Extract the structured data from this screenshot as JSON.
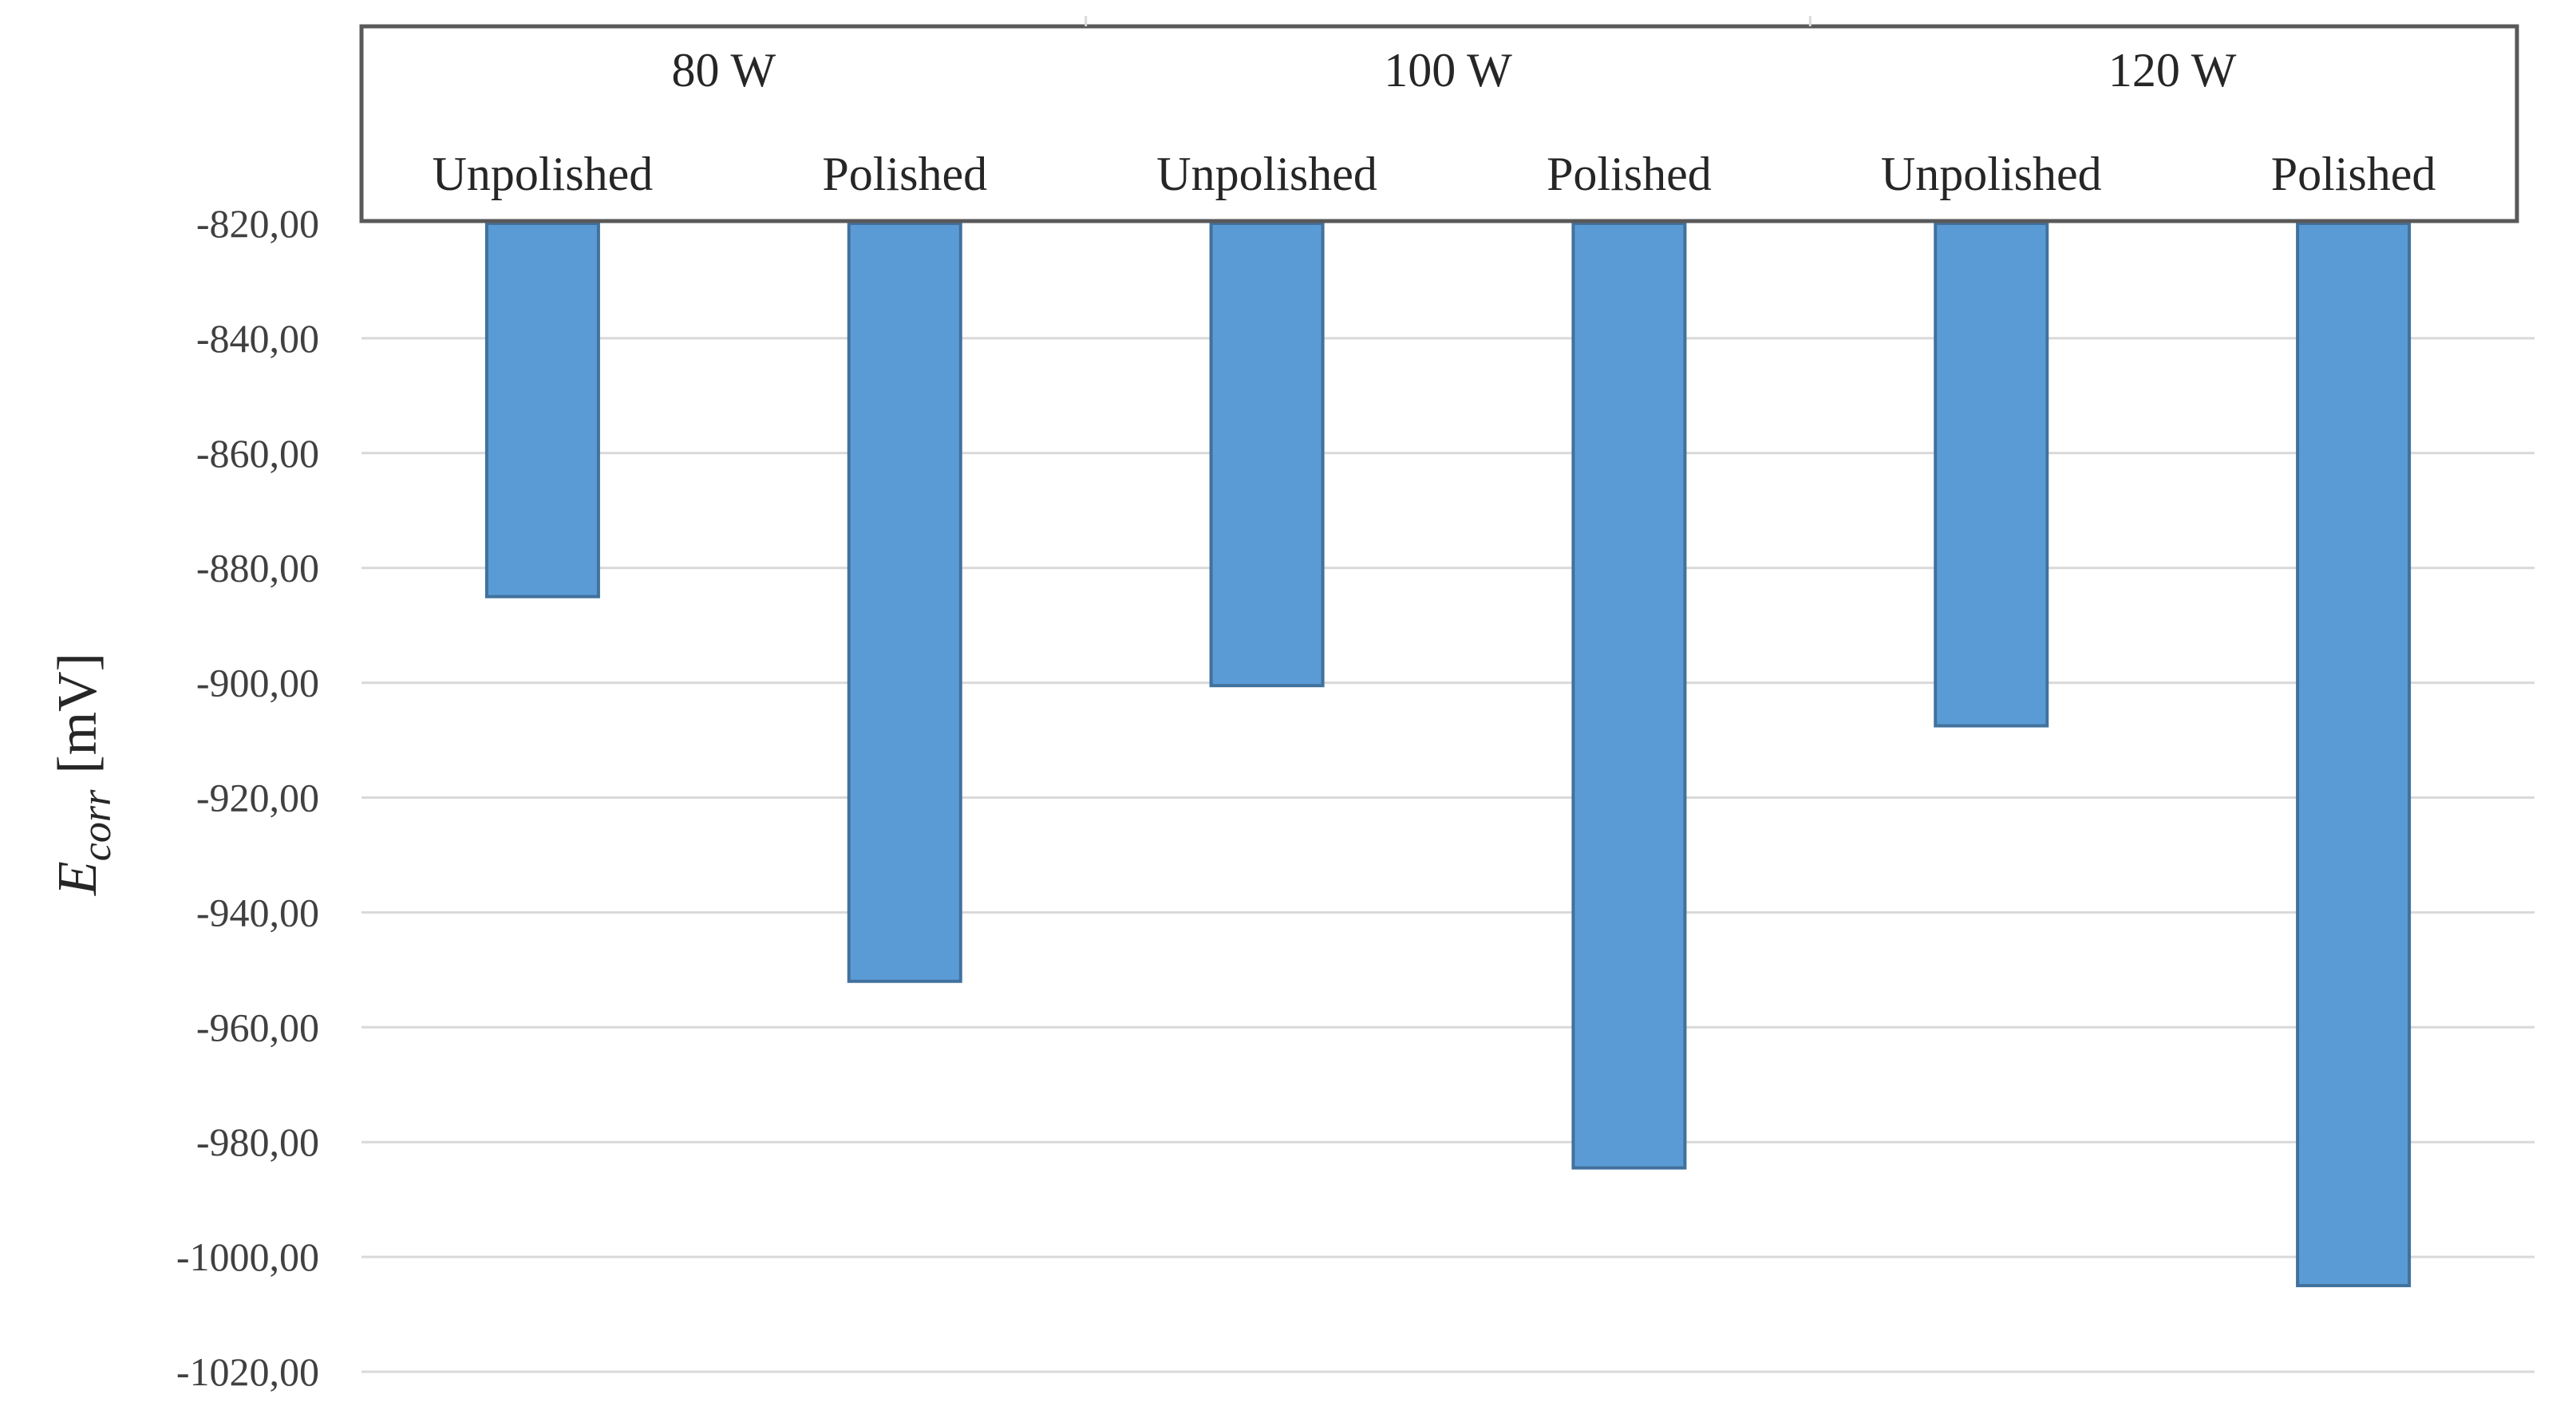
{
  "chart_data": {
    "type": "bar",
    "groups": [
      "80 W",
      "100 W",
      "120 W"
    ],
    "categories": [
      "Unpolished",
      "Polished",
      "Unpolished",
      "Polished",
      "Unpolished",
      "Polished"
    ],
    "values": [
      -885,
      -952,
      -900.5,
      -984.5,
      -907.5,
      -1005
    ],
    "ylabel_main": "E",
    "ylabel_sub": "corr",
    "ylabel_unit": "[mV]",
    "ylim": [
      -1020,
      -820
    ],
    "ytick_step": 20,
    "ytick_labels": [
      "-820,00",
      "-840,00",
      "-860,00",
      "-880,00",
      "-900,00",
      "-920,00",
      "-940,00",
      "-960,00",
      "-980,00",
      "-1000,00",
      "-1020,00"
    ],
    "grid": true,
    "bar_color": "#5b9bd5",
    "bar_edge_color": "#41719c"
  }
}
